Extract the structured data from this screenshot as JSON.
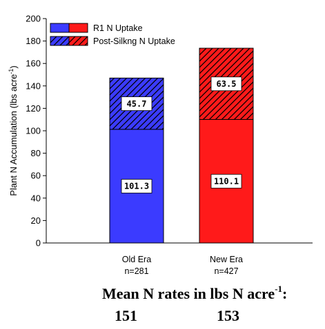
{
  "chart_data": {
    "type": "bar",
    "stacked": true,
    "ylabel_main": "Plant N Accumulation (lbs acre",
    "ylabel_sup": "-1",
    "ylabel_end": ")",
    "ylim": [
      0,
      200
    ],
    "yticks": [
      0,
      20,
      40,
      60,
      80,
      100,
      120,
      140,
      160,
      180,
      200
    ],
    "categories": [
      {
        "name": "Old Era",
        "sub": "n=281"
      },
      {
        "name": "New Era",
        "sub": "n=427"
      }
    ],
    "series": [
      {
        "name": "R1 N Uptake",
        "values": [
          101.3,
          110.1
        ],
        "labels": [
          "101.3",
          "110.1"
        ],
        "pattern": "solid"
      },
      {
        "name": "Post-Silkng N Uptake",
        "values": [
          45.7,
          63.5
        ],
        "labels": [
          "45.7",
          "63.5"
        ],
        "pattern": "hatch"
      }
    ],
    "bar_colors": [
      "#3b3bff",
      "#ff1a1a"
    ],
    "legend_position": "top-left",
    "grid": false
  },
  "footer": {
    "line1_main": "Mean N rates in lbs N acre",
    "line1_sup": "-1",
    "line1_end": ":",
    "values": [
      "151",
      "153"
    ]
  }
}
